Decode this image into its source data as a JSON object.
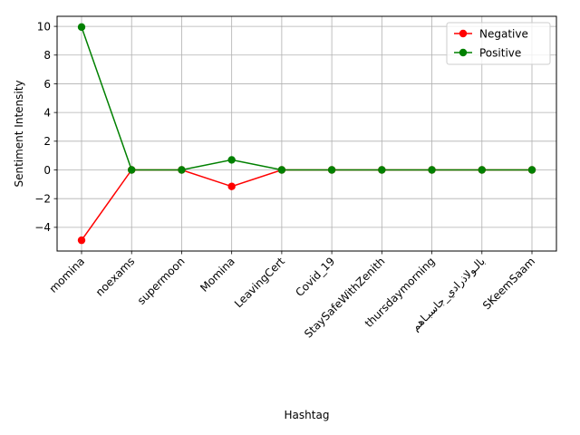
{
  "chart_data": {
    "type": "line",
    "title": "",
    "xlabel": "Hashtag",
    "ylabel": "Sentiment Intensity",
    "categories": [
      "momina",
      "noexams",
      "supermoon",
      "Momina",
      "LeavingCert",
      "Covid_19",
      "StaySafeWithZenith",
      "thursdaymorning",
      "بالـولاذرادي_جاسبـاهم",
      "SKeemSaam"
    ],
    "series": [
      {
        "name": "Negative",
        "color": "#ff0000",
        "values": [
          -4.9,
          0,
          0,
          -1.15,
          0,
          0,
          0,
          0,
          0,
          0
        ]
      },
      {
        "name": "Positive",
        "color": "#008000",
        "values": [
          9.95,
          0,
          0,
          0.7,
          0,
          0,
          0,
          0,
          0,
          0
        ]
      }
    ],
    "ylim": [
      -5.65,
      10.7
    ],
    "yticks": [
      -4,
      -2,
      0,
      2,
      4,
      6,
      8,
      10
    ],
    "grid": true,
    "legend_position": "top-right"
  }
}
